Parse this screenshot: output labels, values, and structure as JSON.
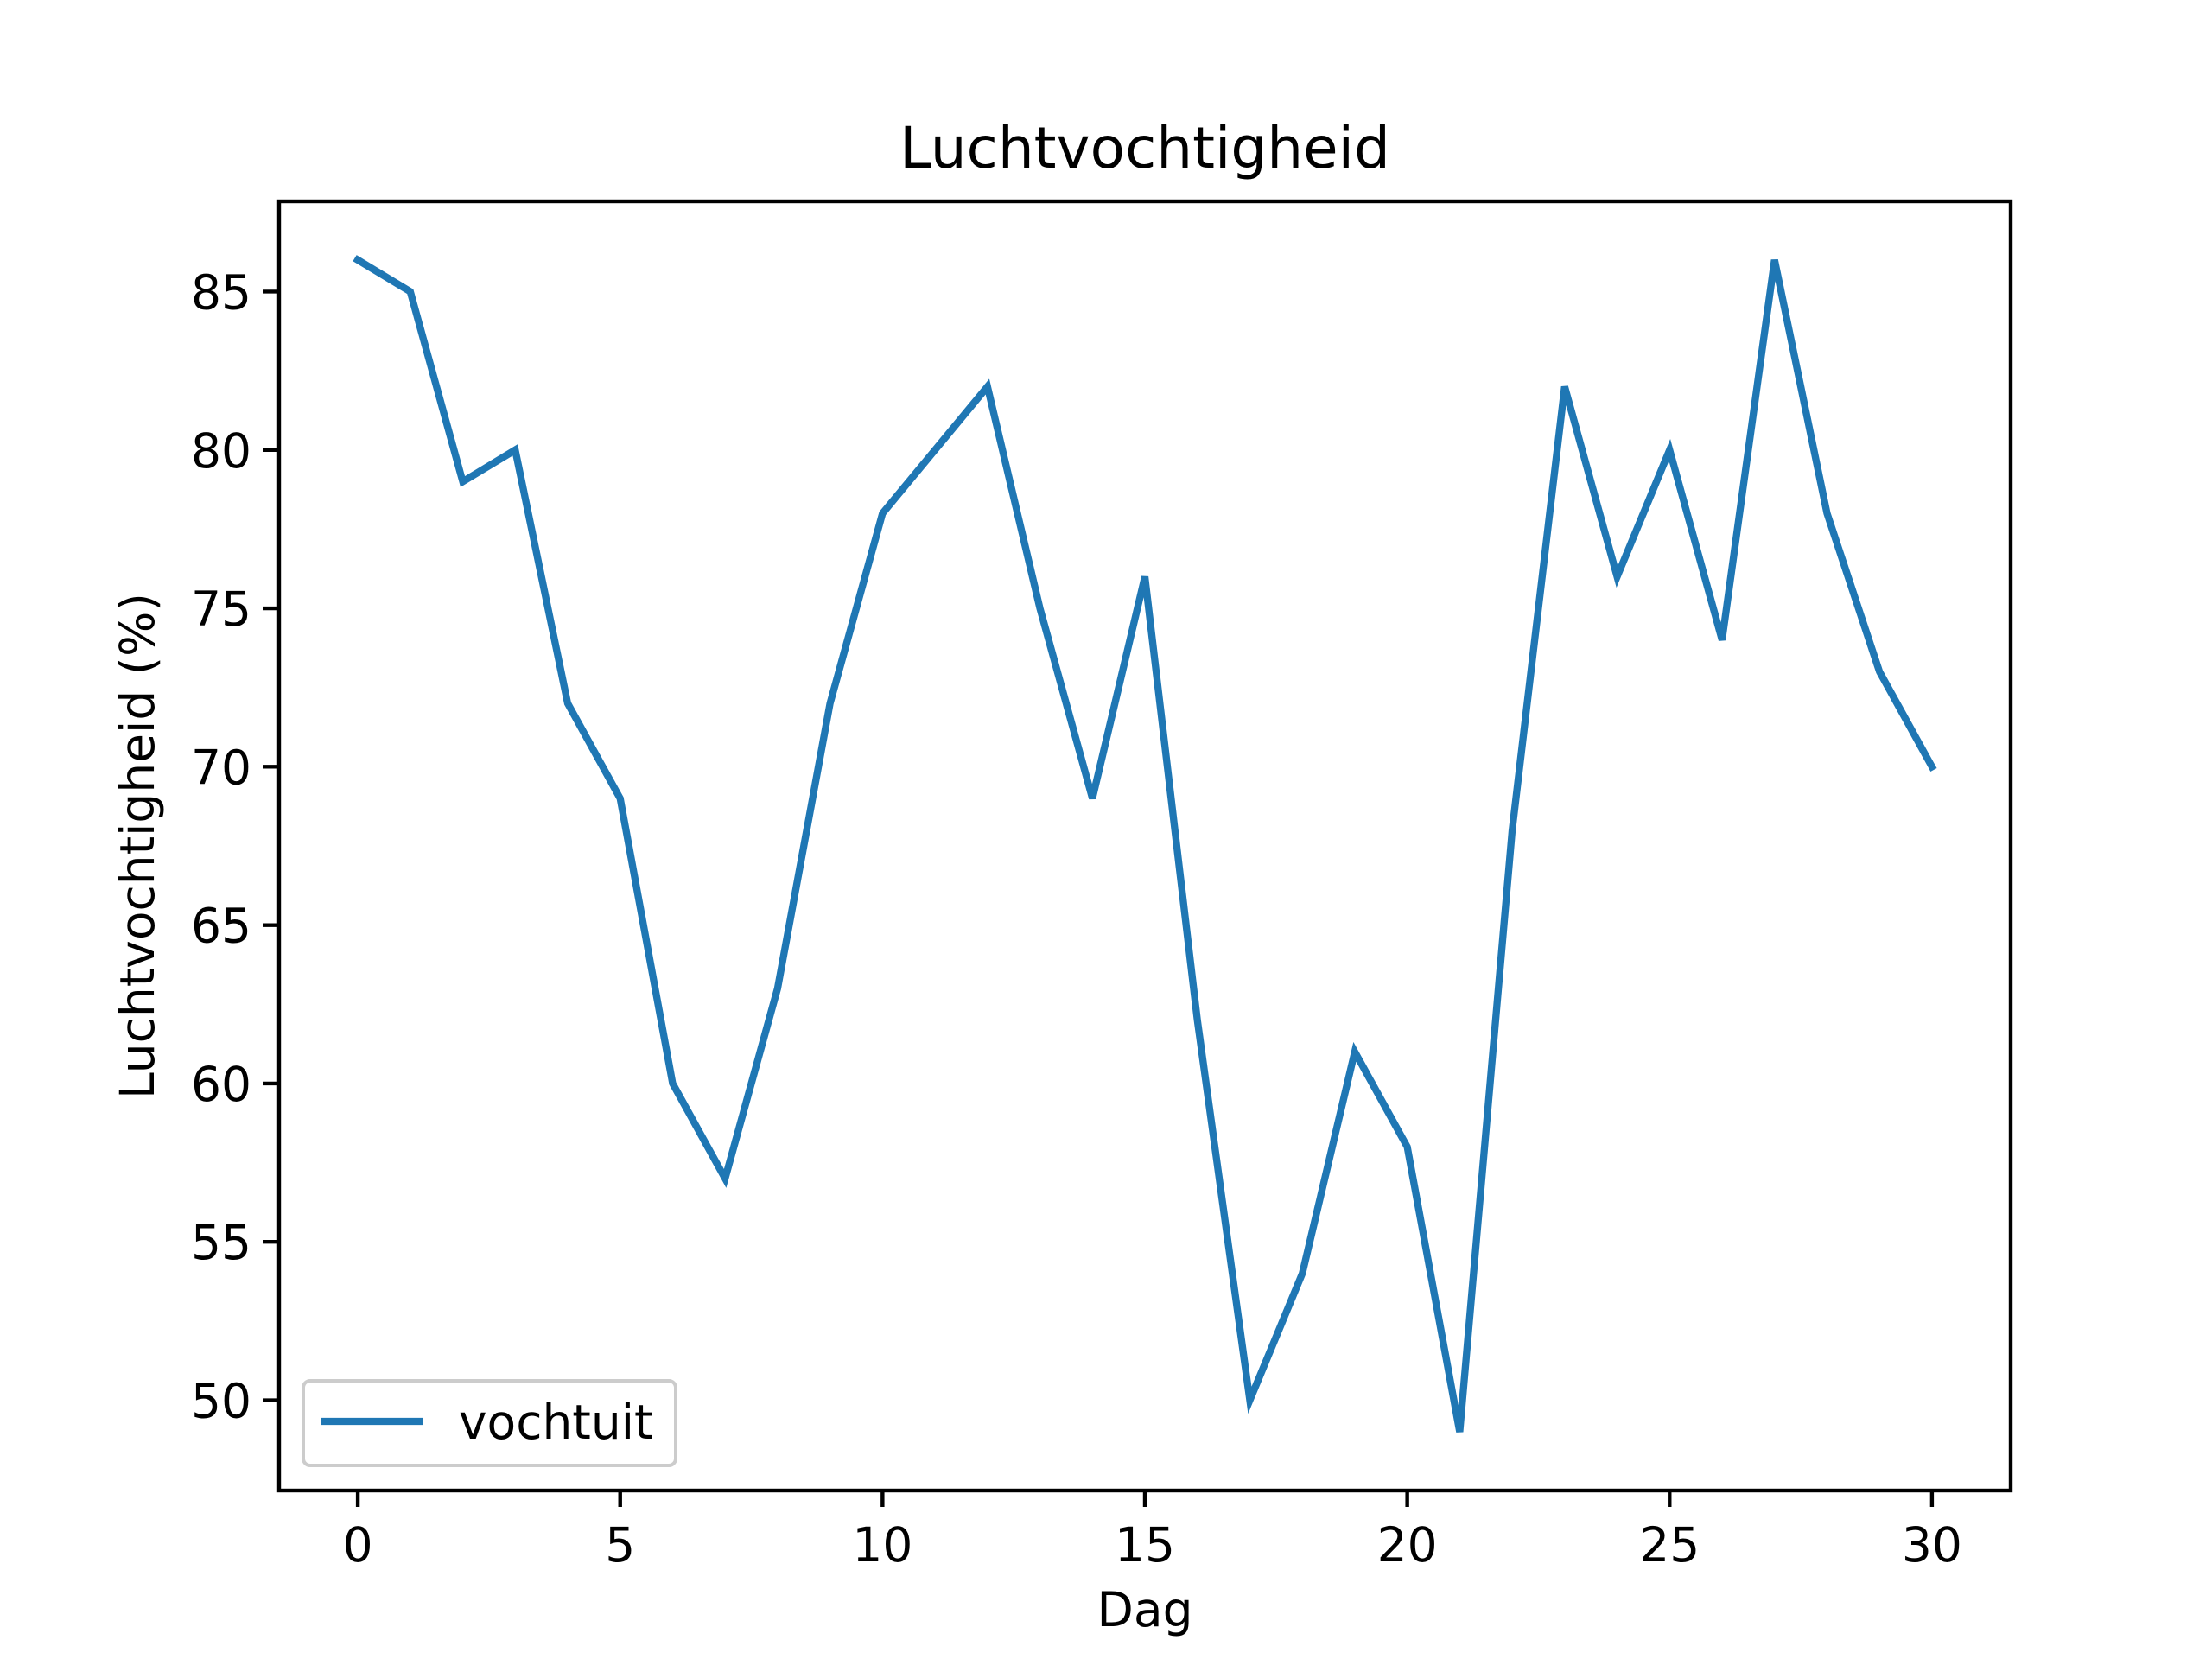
{
  "chart_data": {
    "type": "line",
    "title": "Luchtvochtigheid",
    "xlabel": "Dag",
    "ylabel": "Luchtvochtigheid (%)",
    "xlim": [
      -1.5,
      31.5
    ],
    "ylim": [
      47.15,
      87.85
    ],
    "xticks": [
      0,
      5,
      10,
      15,
      20,
      25,
      30
    ],
    "yticks": [
      50,
      55,
      60,
      65,
      70,
      75,
      80,
      85
    ],
    "grid": false,
    "legend_position": "lower left",
    "series": [
      {
        "name": "vochtuit",
        "color": "#1f77b4",
        "x": [
          0,
          1,
          2,
          3,
          4,
          5,
          6,
          7,
          8,
          9,
          10,
          11,
          12,
          13,
          14,
          15,
          16,
          17,
          18,
          19,
          20,
          21,
          22,
          23,
          24,
          25,
          26,
          27,
          28,
          29,
          30
        ],
        "y": [
          86,
          85,
          79,
          80,
          72,
          69,
          60,
          57,
          63,
          72,
          78,
          80,
          82,
          75,
          69,
          76,
          62,
          50,
          54,
          61,
          58,
          49,
          68,
          82,
          76,
          80,
          74,
          86,
          78,
          73,
          70
        ]
      }
    ]
  }
}
